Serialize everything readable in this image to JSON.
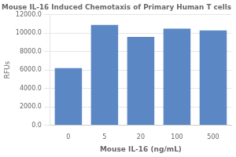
{
  "chart_data": {
    "type": "bar",
    "title": "Mouse IL-16 Induced Chemotaxis of Primary Human T cells",
    "xlabel": "Mouse IL-16 (ng/mL)",
    "ylabel": "RFUs",
    "categories": [
      "0",
      "5",
      "20",
      "100",
      "500"
    ],
    "values": [
      6200,
      10900,
      9600,
      10500,
      10300
    ],
    "color": "#5b87c5",
    "ylim": [
      0,
      12000
    ],
    "yticks": [
      {
        "value": 0,
        "label": "0.0"
      },
      {
        "value": 2000,
        "label": "2000.0"
      },
      {
        "value": 4000,
        "label": "4000.0"
      },
      {
        "value": 6000,
        "label": "6000.0"
      },
      {
        "value": 8000,
        "label": "8000.0"
      },
      {
        "value": 10000,
        "label": "10000.0"
      },
      {
        "value": 12000,
        "label": "12000.0"
      }
    ],
    "grid": true
  }
}
